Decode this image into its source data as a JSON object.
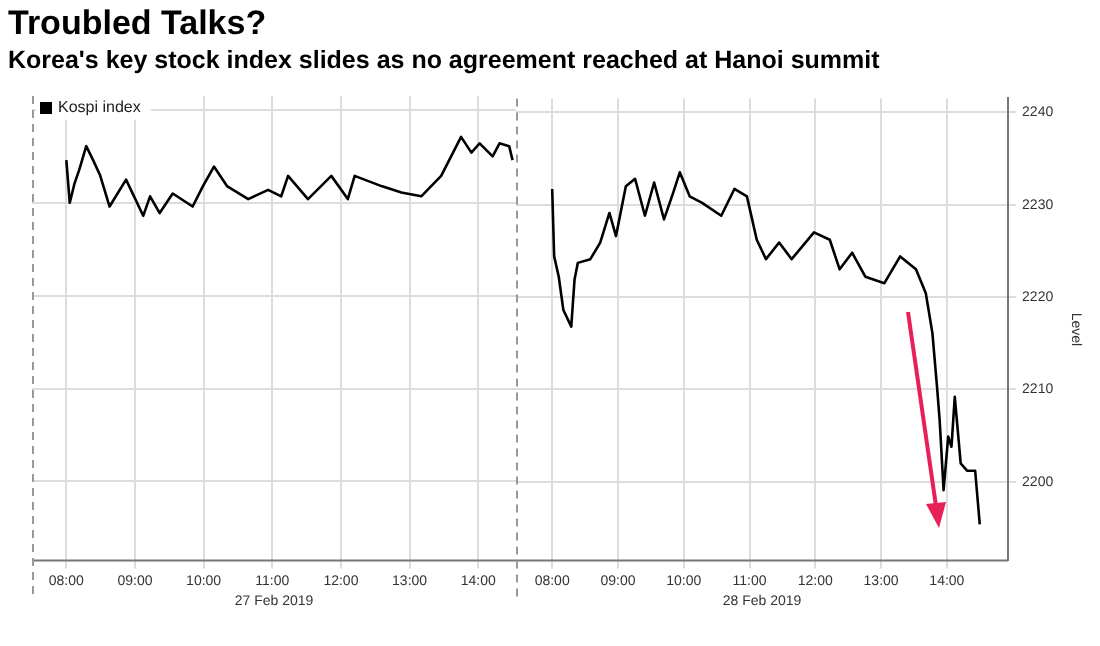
{
  "chart_data": [
    {
      "type": "line",
      "title": "Troubled Talks?",
      "subtitle": "Korea's key stock index slides as no agreement reached at Hanoi summit",
      "xlabel": "27 Feb 2019",
      "series": [
        {
          "name": "Kospi index",
          "color": "#000000",
          "x": [
            8.0,
            8.05,
            8.12,
            8.19,
            8.29,
            8.39,
            8.49,
            8.63,
            8.87,
            9.12,
            9.22,
            9.36,
            9.55,
            9.84,
            9.99,
            10.15,
            10.34,
            10.65,
            10.94,
            11.13,
            11.23,
            11.52,
            11.86,
            12.1,
            12.2,
            12.59,
            12.88,
            13.17,
            13.46,
            13.75,
            13.9,
            14.02,
            14.21,
            14.31,
            14.45,
            14.5
          ],
          "values": [
            2234.6,
            2230,
            2232.1,
            2233.6,
            2236.1,
            2234.6,
            2233,
            2229.6,
            2232.5,
            2228.6,
            2230.7,
            2228.9,
            2231,
            2229.6,
            2231.8,
            2233.9,
            2231.8,
            2230.4,
            2231.4,
            2230.7,
            2232.9,
            2230.4,
            2232.9,
            2230.4,
            2232.9,
            2231.8,
            2231.1,
            2230.7,
            2232.9,
            2237.1,
            2235.4,
            2236.4,
            2235,
            2236.4,
            2236.1,
            2234.6
          ]
        }
      ],
      "xlim": [
        7.5,
        14.55
      ],
      "xticks": [
        {
          "value": 8,
          "label": "08:00"
        },
        {
          "value": 9,
          "label": "09:00"
        },
        {
          "value": 10,
          "label": "10:00"
        },
        {
          "value": 11,
          "label": "11:00"
        },
        {
          "value": 12,
          "label": "12:00"
        },
        {
          "value": 13,
          "label": "13:00"
        },
        {
          "value": 14,
          "label": "14:00"
        }
      ],
      "ylim": [
        2191.5,
        2241.5
      ],
      "yticks": [
        2200,
        2210,
        2220,
        2230,
        2240
      ],
      "tick_labels": "x",
      "grid": true,
      "legend": "top left",
      "marker": "none",
      "line_style": "solid"
    },
    {
      "type": "line",
      "xlabel": "28 Feb 2019",
      "ylabel": "Level",
      "series": [
        {
          "color": "#000000",
          "x": [
            8.0,
            8.03,
            8.1,
            8.17,
            8.29,
            8.34,
            8.39,
            8.58,
            8.73,
            8.87,
            8.97,
            9.12,
            9.26,
            9.41,
            9.55,
            9.7,
            9.84,
            9.94,
            10.09,
            10.28,
            10.57,
            10.77,
            10.96,
            11.11,
            11.25,
            11.45,
            11.64,
            11.98,
            12.22,
            12.37,
            12.56,
            12.76,
            13.05,
            13.29,
            13.53,
            13.68,
            13.78,
            13.85,
            13.89,
            13.95,
            14.02,
            14.07,
            14.12,
            14.21,
            14.31,
            14.43,
            14.5
          ],
          "values": [
            2231.7,
            2224.4,
            2222.2,
            2218.6,
            2216.8,
            2221.9,
            2223.7,
            2224.1,
            2225.9,
            2229.1,
            2226.6,
            2232,
            2232.8,
            2228.8,
            2232.4,
            2228.4,
            2231.3,
            2233.5,
            2230.9,
            2230.2,
            2228.8,
            2231.7,
            2230.9,
            2226.2,
            2224.1,
            2225.9,
            2224.1,
            2227,
            2226.2,
            2223,
            2224.8,
            2222.2,
            2221.5,
            2224.4,
            2223,
            2220.4,
            2216.1,
            2210.3,
            2206.7,
            2199.1,
            2204.9,
            2203.8,
            2209.2,
            2202,
            2201.2,
            2201.2,
            2195.4
          ]
        }
      ],
      "xlim": [
        7.45,
        14.93
      ],
      "xticks": [
        {
          "value": 8,
          "label": "08:00"
        },
        {
          "value": 9,
          "label": "09:00"
        },
        {
          "value": 10,
          "label": "10:00"
        },
        {
          "value": 11,
          "label": "11:00"
        },
        {
          "value": 12,
          "label": "12:00"
        },
        {
          "value": 13,
          "label": "13:00"
        },
        {
          "value": 14,
          "label": "14:00"
        }
      ],
      "ylim": [
        2191.5,
        2241.5
      ],
      "yticks": [
        2200,
        2210,
        2220,
        2230,
        2240
      ],
      "grid": true,
      "marker": "none",
      "line_style": "solid"
    }
  ]
}
